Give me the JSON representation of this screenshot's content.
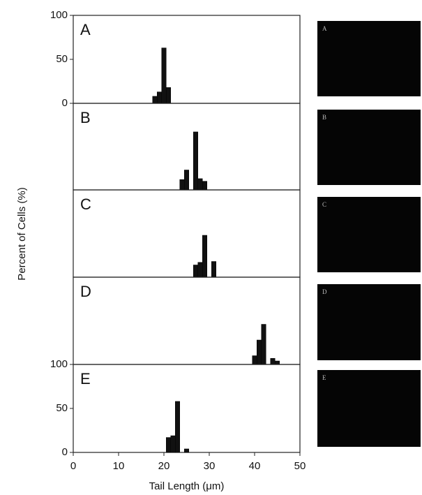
{
  "chart_data": {
    "type": "histogram-panels",
    "ylabel": "Percent of Cells (%)",
    "xlabel": "Tail Length (μm)",
    "xlim": [
      0,
      50
    ],
    "xticks": [
      0,
      10,
      20,
      30,
      40,
      50
    ],
    "color": "#111111",
    "panels": [
      {
        "label": "A",
        "ylim": [
          0,
          100
        ],
        "yticks": [
          0,
          50,
          100
        ],
        "bins": [
          17.5,
          18.5,
          19.5,
          20.5,
          21.5
        ],
        "values": [
          8,
          13,
          63,
          18
        ]
      },
      {
        "label": "B",
        "ylim": [
          0,
          100
        ],
        "bins": [
          23.5,
          24.5,
          25.5,
          26.5,
          27.5,
          28.5,
          29.5
        ],
        "values": [
          12,
          23,
          0,
          67,
          13,
          10
        ]
      },
      {
        "label": "C",
        "ylim": [
          0,
          100
        ],
        "bins": [
          26.5,
          27.5,
          28.5,
          29.5,
          30.5,
          31.5
        ],
        "values": [
          14,
          17,
          48,
          0,
          18
        ]
      },
      {
        "label": "D",
        "ylim": [
          0,
          100
        ],
        "bins": [
          39.5,
          40.5,
          41.5,
          42.5,
          43.5,
          44.5,
          45.5
        ],
        "values": [
          10,
          28,
          46,
          0,
          7,
          4
        ]
      },
      {
        "label": "E",
        "ylim": [
          0,
          100
        ],
        "yticks": [
          0,
          50,
          100
        ],
        "bins": [
          20.5,
          21.5,
          22.5,
          23.5,
          24.5,
          25.5
        ],
        "values": [
          17,
          19,
          58,
          0,
          4
        ]
      }
    ]
  },
  "image_panels": [
    "A",
    "B",
    "C",
    "D",
    "E"
  ]
}
